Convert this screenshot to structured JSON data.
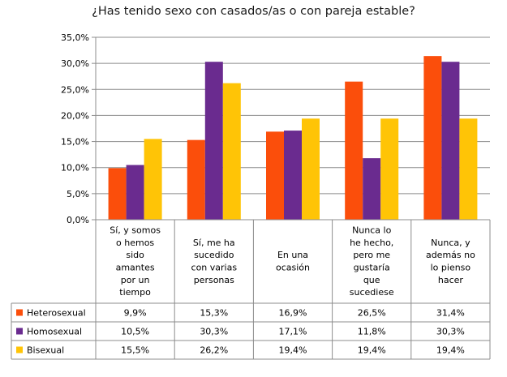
{
  "chart_data": {
    "type": "bar",
    "title": "¿Has tenido sexo con casados/as o con pareja estable?",
    "categories": [
      [
        "Sí, y somos",
        "o hemos",
        "sido",
        "amantes",
        "por un",
        "tiempo"
      ],
      [
        "Sí, me ha",
        "sucedido",
        "con varias",
        "personas"
      ],
      [
        "En una",
        "ocasión"
      ],
      [
        "Nunca lo",
        "he hecho,",
        "pero me",
        "gustaría",
        "que",
        "sucediese"
      ],
      [
        "Nunca, y",
        "además no",
        "lo pienso",
        "hacer"
      ]
    ],
    "series": [
      {
        "name": "Heterosexual",
        "color": "#fb4e0b",
        "values": [
          9.9,
          15.3,
          16.9,
          26.5,
          31.4
        ],
        "labels": [
          "9,9%",
          "15,3%",
          "16,9%",
          "26,5%",
          "31,4%"
        ]
      },
      {
        "name": "Homosexual",
        "color": "#6a2b8f",
        "values": [
          10.5,
          30.3,
          17.1,
          11.8,
          30.3
        ],
        "labels": [
          "10,5%",
          "30,3%",
          "17,1%",
          "11,8%",
          "30,3%"
        ]
      },
      {
        "name": "Bisexual",
        "color": "#ffc406",
        "values": [
          15.5,
          26.2,
          19.4,
          19.4,
          19.4
        ],
        "labels": [
          "15,5%",
          "26,2%",
          "19,4%",
          "19,4%",
          "19,4%"
        ]
      }
    ],
    "yticks": [
      "0,0%",
      "5,0%",
      "10,0%",
      "15,0%",
      "20,0%",
      "25,0%",
      "30,0%",
      "35,0%"
    ],
    "ylim": [
      0,
      35
    ],
    "grid": true,
    "legend": "data-table"
  }
}
